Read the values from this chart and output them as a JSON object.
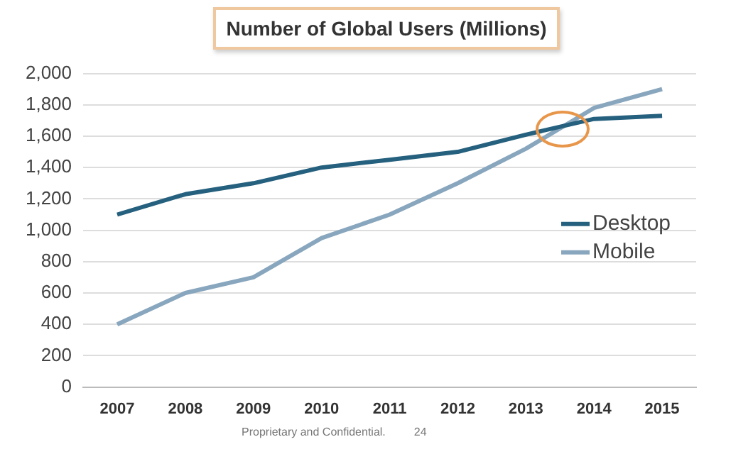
{
  "chart_data": {
    "type": "line",
    "title": "Number of Global Users (Millions)",
    "categories": [
      "2007",
      "2008",
      "2009",
      "2010",
      "2011",
      "2012",
      "2013",
      "2014",
      "2015"
    ],
    "series": [
      {
        "name": "Desktop",
        "color": "#25607e",
        "values": [
          1100,
          1230,
          1300,
          1400,
          1450,
          1500,
          1610,
          1710,
          1730
        ]
      },
      {
        "name": "Mobile",
        "color": "#88a6bd",
        "values": [
          400,
          600,
          700,
          950,
          1100,
          1300,
          1520,
          1780,
          1900
        ]
      }
    ],
    "ylim": [
      0,
      2000
    ],
    "yticks": [
      0,
      200,
      400,
      600,
      800,
      {
        "value": 1000,
        "label": "1,000"
      },
      {
        "value": 1200,
        "label": "1,200"
      },
      {
        "value": 1400,
        "label": "1,400"
      },
      {
        "value": 1600,
        "label": "1,600"
      },
      {
        "value": 1800,
        "label": "1,800"
      },
      {
        "value": 2000,
        "label": "2,000"
      }
    ],
    "grid": "y",
    "legend": "right",
    "marker": "none",
    "annotations": [
      "Proprietary and Confidential.",
      "24"
    ]
  }
}
